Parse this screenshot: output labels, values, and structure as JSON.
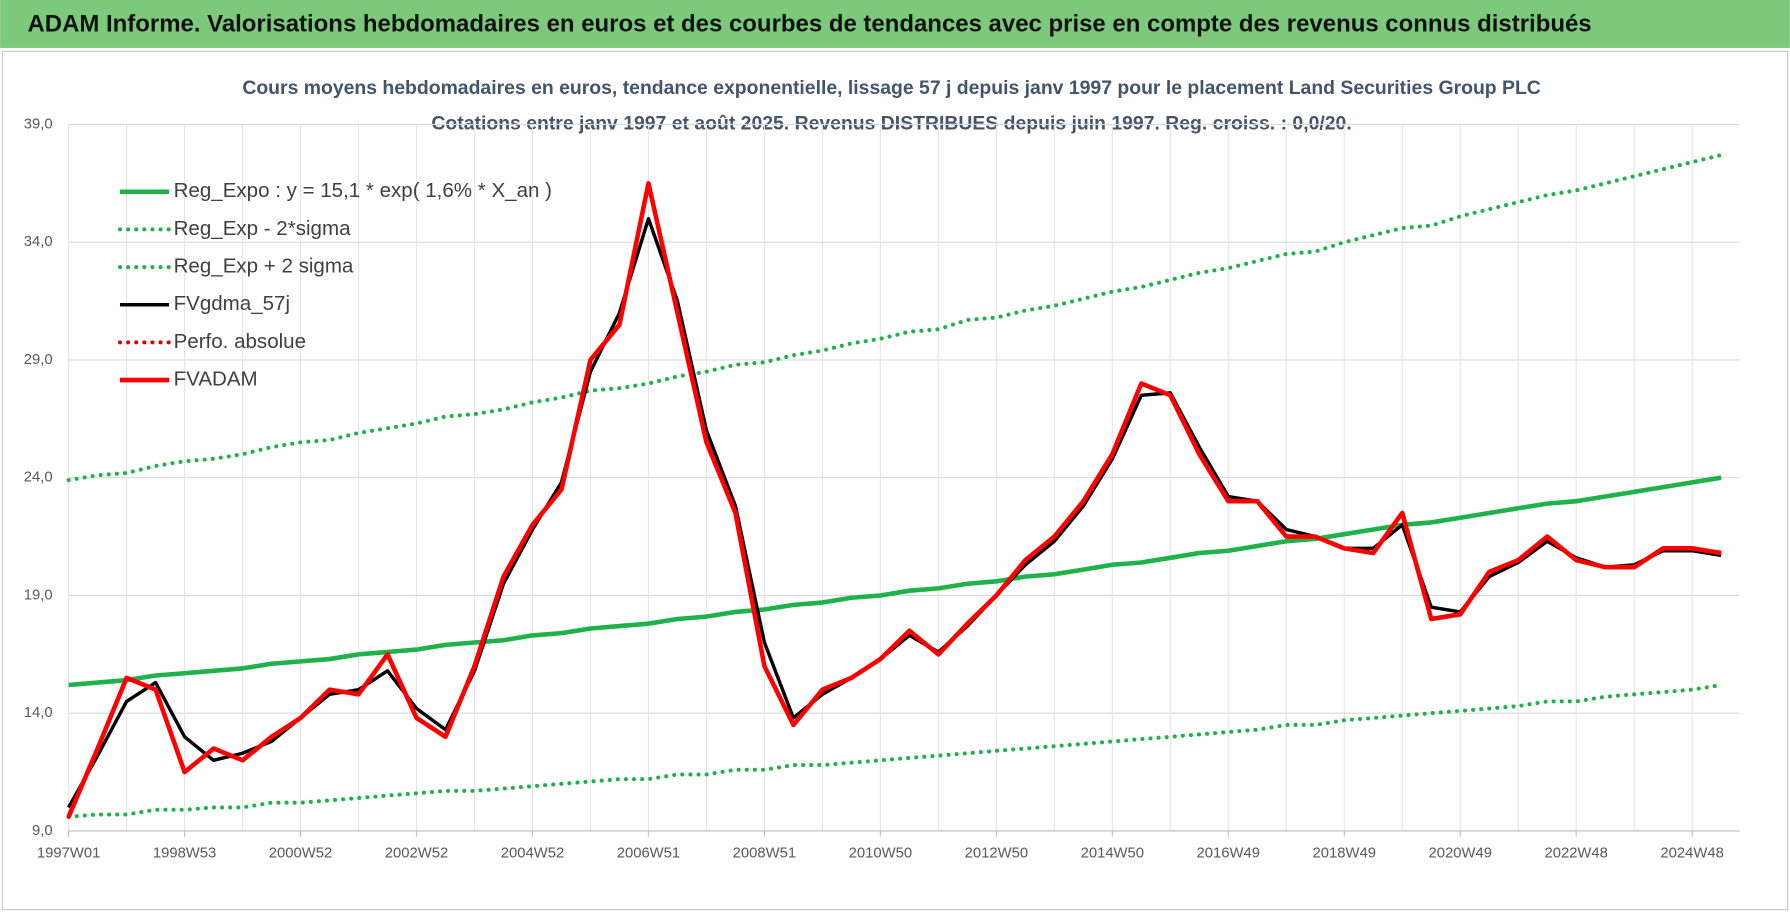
{
  "header": {
    "title": "ADAM Informe. Valorisations hebdomadaires en euros et des courbes de tendances avec prise en compte des revenus connus distribués"
  },
  "chart_data": {
    "type": "line",
    "title": "Cours moyens hebdomadaires en euros, tendance exponentielle, lissage 57 j depuis janv 1997  pour le placement Land Securities Group PLC",
    "subtitle": "Cotations entre janv 1997 et août 2025. Revenus DISTRIBUES depuis juin 1997. Reg. croiss. : 0,0/20.",
    "categories": [
      "1997W01",
      null,
      null,
      null,
      "1998W53",
      null,
      null,
      null,
      "2000W52",
      null,
      null,
      null,
      "2002W52",
      null,
      null,
      null,
      "2004W52",
      null,
      null,
      null,
      "2006W51",
      null,
      null,
      null,
      "2008W51",
      null,
      null,
      null,
      "2010W50",
      null,
      null,
      null,
      "2012W50",
      null,
      null,
      null,
      "2014W50",
      null,
      null,
      null,
      "2016W49",
      null,
      null,
      null,
      "2018W49",
      null,
      null,
      null,
      "2020W49",
      null,
      null,
      null,
      "2022W48",
      null,
      null,
      null,
      "2024W48",
      null
    ],
    "ylim": [
      9,
      39
    ],
    "yticks": [
      {
        "value": 9,
        "label": "9,0"
      },
      {
        "value": 14,
        "label": "14,0"
      },
      {
        "value": 19,
        "label": "19,0"
      },
      {
        "value": 24,
        "label": "24,0"
      },
      {
        "value": 29,
        "label": "29,0"
      },
      {
        "value": 34,
        "label": "34,0"
      },
      {
        "value": 39,
        "label": "39,0"
      }
    ],
    "grid": true,
    "legend": "top-left",
    "series": [
      {
        "name": "Reg_Expo : y = 15,1 * exp( 1,6% *  X_an )",
        "color": "#1fb14a",
        "style": "solid",
        "values": [
          15.2,
          15.3,
          15.4,
          15.6,
          15.7,
          15.8,
          15.9,
          16.1,
          16.2,
          16.3,
          16.5,
          16.6,
          16.7,
          16.9,
          17.0,
          17.1,
          17.3,
          17.4,
          17.6,
          17.7,
          17.8,
          18.0,
          18.1,
          18.3,
          18.4,
          18.6,
          18.7,
          18.9,
          19.0,
          19.2,
          19.3,
          19.5,
          19.6,
          19.8,
          19.9,
          20.1,
          20.3,
          20.4,
          20.6,
          20.8,
          20.9,
          21.1,
          21.3,
          21.4,
          21.6,
          21.8,
          22.0,
          22.1,
          22.3,
          22.5,
          22.7,
          22.9,
          23.0,
          23.2,
          23.4,
          23.6,
          23.8,
          24.0
        ]
      },
      {
        "name": "Reg_Exp - 2*sigma",
        "color": "#1fb14a",
        "style": "dotted",
        "values": [
          9.6,
          9.7,
          9.7,
          9.9,
          9.9,
          10.0,
          10.0,
          10.2,
          10.2,
          10.3,
          10.4,
          10.5,
          10.6,
          10.7,
          10.7,
          10.8,
          10.9,
          11.0,
          11.1,
          11.2,
          11.2,
          11.4,
          11.4,
          11.6,
          11.6,
          11.8,
          11.8,
          11.9,
          12.0,
          12.1,
          12.2,
          12.3,
          12.4,
          12.5,
          12.6,
          12.7,
          12.8,
          12.9,
          13.0,
          13.1,
          13.2,
          13.3,
          13.5,
          13.5,
          13.7,
          13.8,
          13.9,
          14.0,
          14.1,
          14.2,
          14.3,
          14.5,
          14.5,
          14.7,
          14.8,
          14.9,
          15.0,
          15.2
        ]
      },
      {
        "name": "Reg_Exp + 2 sigma",
        "color": "#1fb14a",
        "style": "dotted",
        "values": [
          23.9,
          24.1,
          24.2,
          24.5,
          24.7,
          24.8,
          25.0,
          25.3,
          25.5,
          25.6,
          25.9,
          26.1,
          26.3,
          26.6,
          26.7,
          26.9,
          27.2,
          27.4,
          27.7,
          27.8,
          28.0,
          28.3,
          28.5,
          28.8,
          28.9,
          29.2,
          29.4,
          29.7,
          29.9,
          30.2,
          30.3,
          30.7,
          30.8,
          31.1,
          31.3,
          31.6,
          31.9,
          32.1,
          32.4,
          32.7,
          32.9,
          33.2,
          33.5,
          33.6,
          34.0,
          34.3,
          34.6,
          34.7,
          35.1,
          35.4,
          35.7,
          36.0,
          36.2,
          36.5,
          36.8,
          37.1,
          37.4,
          37.7
        ]
      },
      {
        "name": "FVgdma_57j",
        "color": "#000000",
        "style": "solid",
        "values": [
          10.0,
          12.2,
          14.5,
          15.3,
          13.0,
          12.0,
          12.3,
          12.8,
          13.8,
          14.8,
          15.0,
          15.8,
          14.2,
          13.3,
          15.8,
          19.5,
          21.8,
          23.8,
          28.5,
          31.0,
          35.0,
          31.5,
          26.0,
          22.8,
          17.0,
          13.8,
          14.8,
          15.5,
          16.3,
          17.3,
          16.6,
          17.7,
          19.0,
          20.3,
          21.3,
          22.8,
          24.8,
          27.5,
          27.6,
          25.3,
          23.2,
          23.0,
          21.8,
          21.5,
          21.0,
          21.0,
          22.0,
          18.5,
          18.3,
          19.8,
          20.4,
          21.3,
          20.6,
          20.2,
          20.3,
          20.9,
          20.9,
          20.7
        ]
      },
      {
        "name": "Perfo. absolue",
        "color": "#e00000",
        "style": "dotted",
        "values": [
          9.6,
          12.5,
          15.5,
          15.0,
          11.5,
          12.5,
          12.0,
          13.0,
          13.8,
          15.0,
          14.8,
          16.5,
          13.8,
          13.0,
          16.0,
          19.8,
          22.0,
          23.5,
          29.0,
          30.5,
          36.5,
          31.0,
          25.5,
          22.5,
          16.0,
          13.5,
          15.0,
          15.5,
          16.3,
          17.5,
          16.5,
          17.8,
          19.0,
          20.5,
          21.5,
          23.0,
          25.0,
          28.0,
          27.5,
          25.0,
          23.0,
          23.0,
          21.5,
          21.5,
          21.0,
          20.8,
          22.5,
          18.0,
          18.2,
          20.0,
          20.5,
          21.5,
          20.5,
          20.2,
          20.2,
          21.0,
          21.0,
          20.8
        ]
      },
      {
        "name": "FVADAM",
        "color": "#ff0000",
        "style": "solid",
        "values": [
          9.6,
          12.5,
          15.5,
          15.0,
          11.5,
          12.5,
          12.0,
          13.0,
          13.8,
          15.0,
          14.8,
          16.5,
          13.8,
          13.0,
          16.0,
          19.8,
          22.0,
          23.5,
          29.0,
          30.5,
          36.5,
          31.0,
          25.5,
          22.5,
          16.0,
          13.5,
          15.0,
          15.5,
          16.3,
          17.5,
          16.5,
          17.8,
          19.0,
          20.5,
          21.5,
          23.0,
          25.0,
          28.0,
          27.5,
          25.0,
          23.0,
          23.0,
          21.5,
          21.5,
          21.0,
          20.8,
          22.5,
          18.0,
          18.2,
          20.0,
          20.5,
          21.5,
          20.5,
          20.2,
          20.2,
          21.0,
          21.0,
          20.8
        ]
      }
    ]
  }
}
